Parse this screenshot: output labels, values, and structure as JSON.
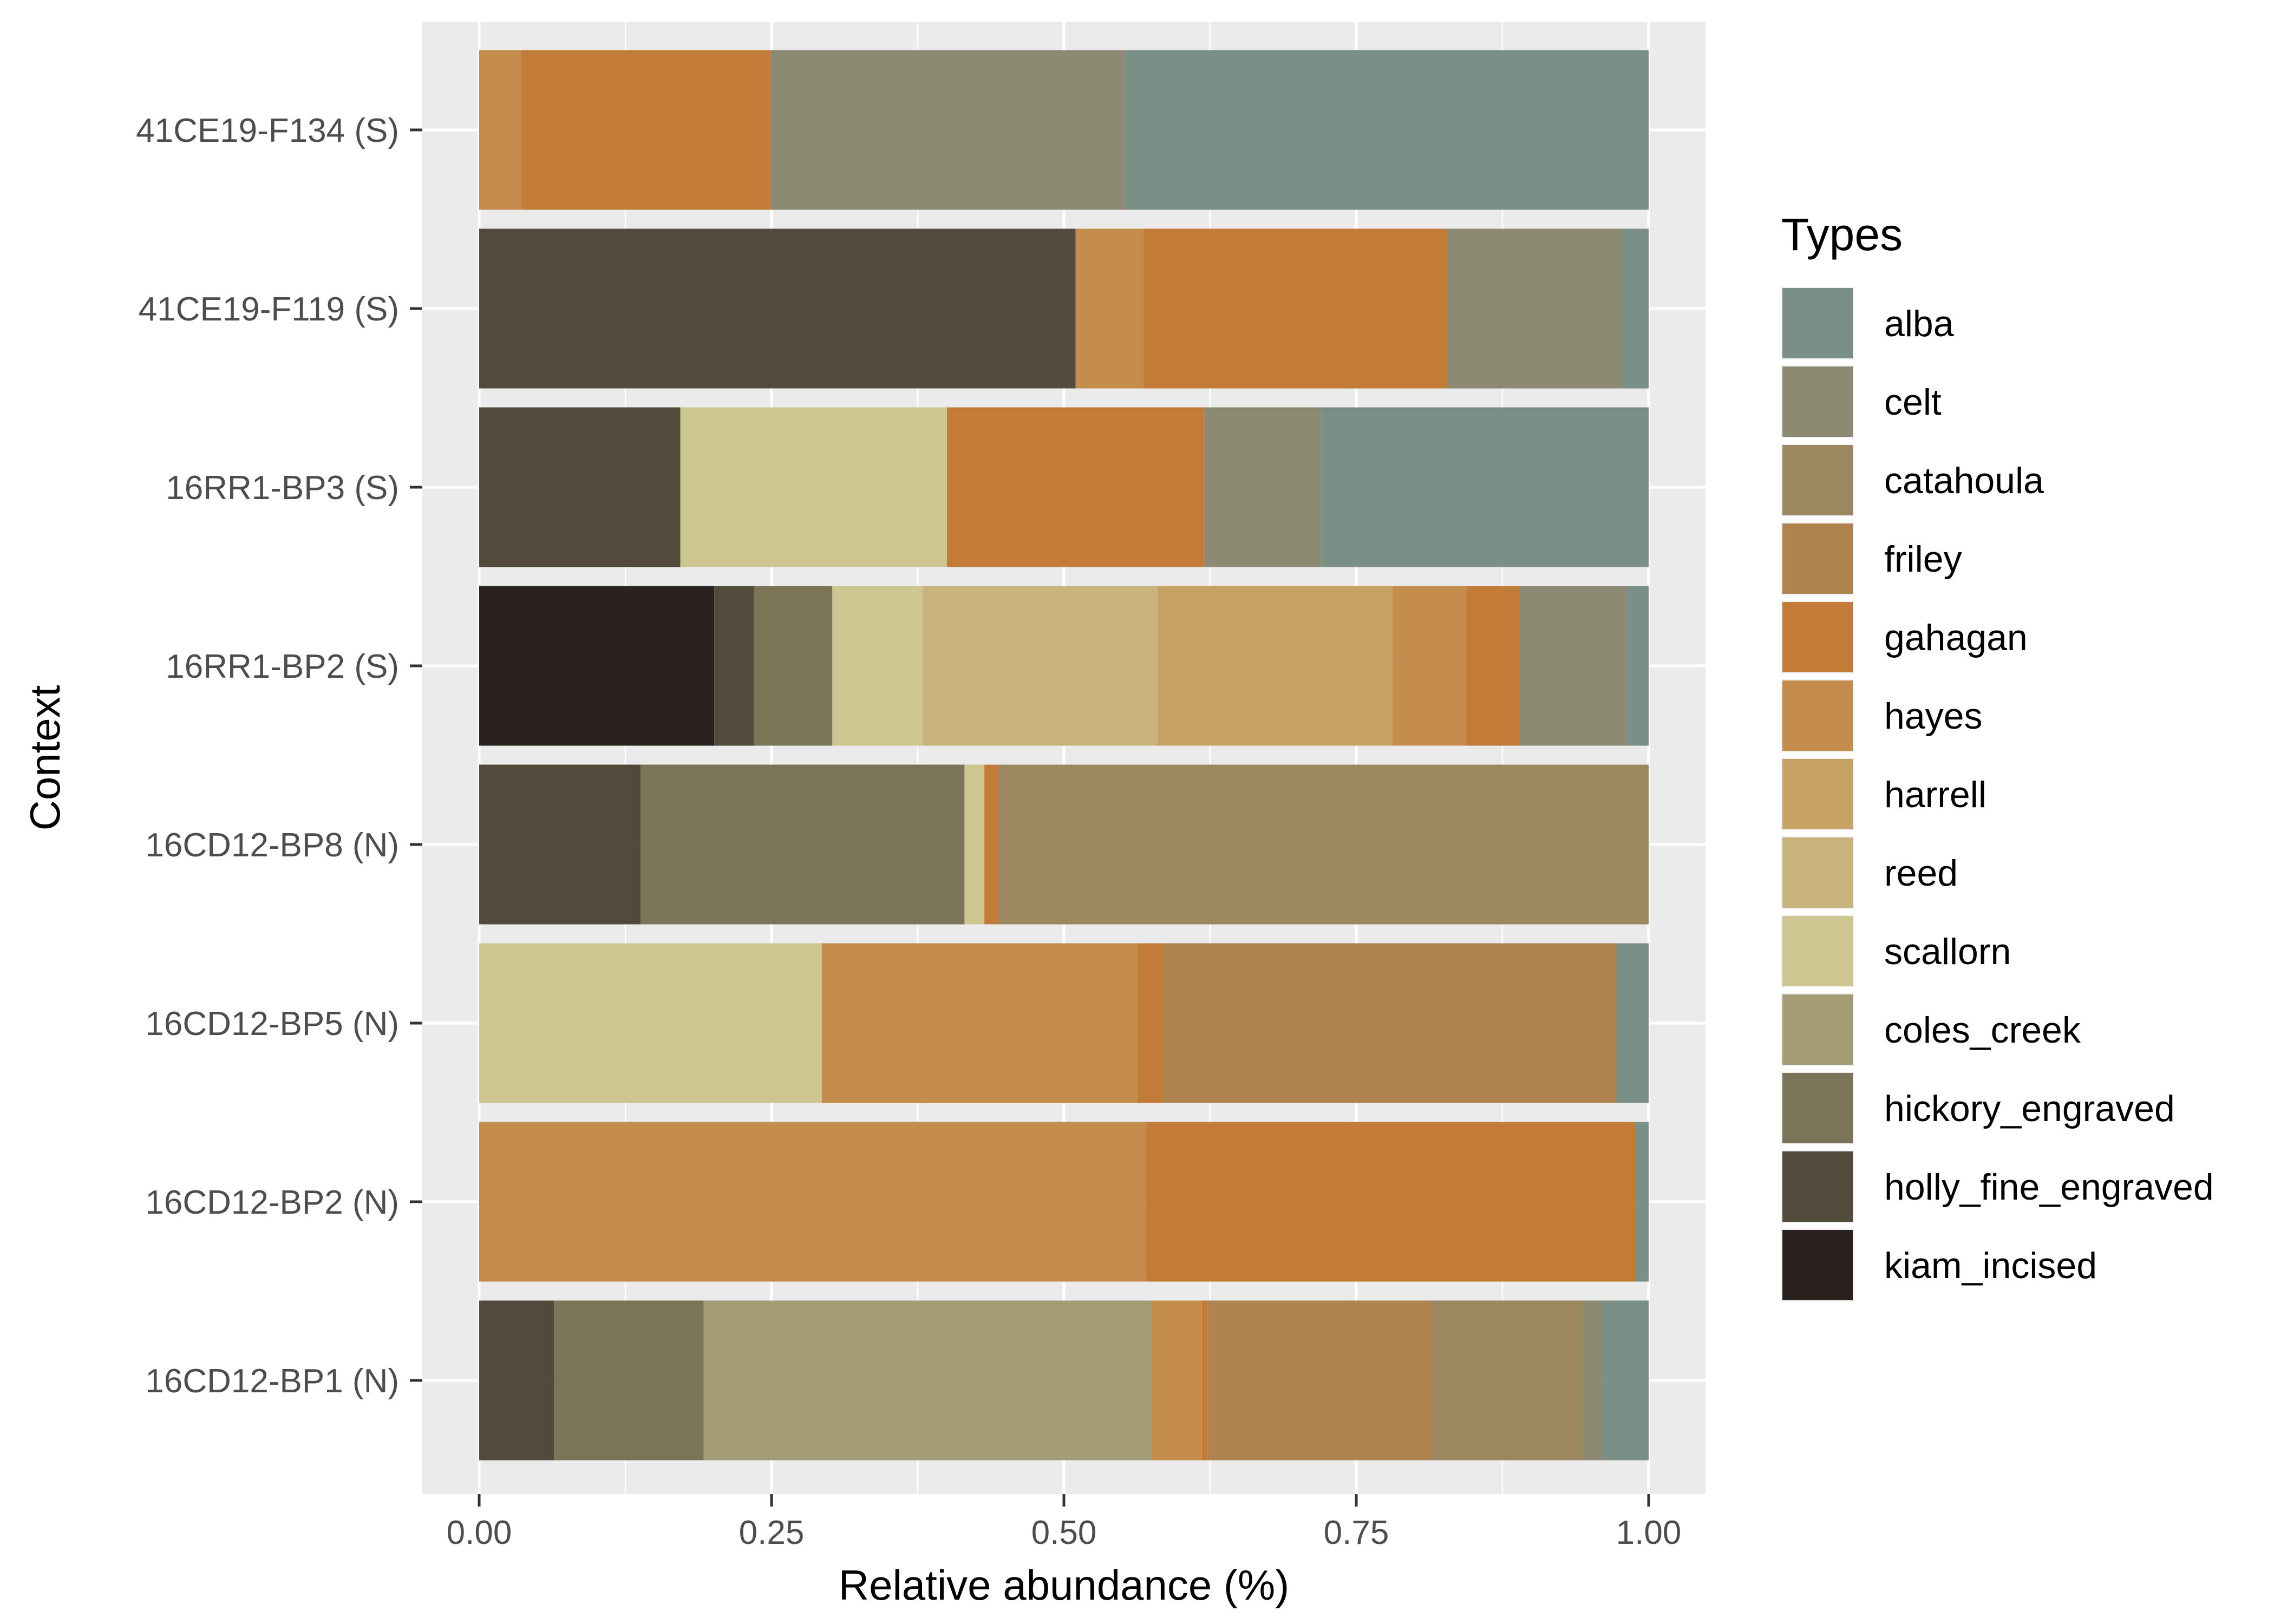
{
  "chart_data": {
    "type": "bar",
    "orientation": "horizontal",
    "stacked": true,
    "xlabel": "Relative abundance (%)",
    "ylabel": "Context",
    "xlim": [
      0,
      1
    ],
    "xticks": [
      "0.00",
      "0.25",
      "0.50",
      "0.75",
      "1.00"
    ],
    "grid": true,
    "legend_position": "right",
    "legend_title": "Types",
    "categories": [
      "16CD12-BP1 (N)",
      "16CD12-BP2 (N)",
      "16CD12-BP5 (N)",
      "16CD12-BP8 (N)",
      "16RR1-BP2 (S)",
      "16RR1-BP3 (S)",
      "41CE19-F119 (S)",
      "41CE19-F134 (S)"
    ],
    "series": [
      {
        "name": "kiam_incised",
        "color": "#2b2220",
        "values": [
          0,
          0,
          0,
          0,
          0.201,
          0,
          0,
          0
        ]
      },
      {
        "name": "holly_fine_engraved",
        "color": "#524b3b",
        "values": [
          0.064,
          0,
          0,
          0.138,
          0.034,
          0.172,
          0.51,
          0
        ]
      },
      {
        "name": "hickory_engraved",
        "color": "#7b7457",
        "values": [
          0.128,
          0,
          0,
          0.277,
          0.067,
          0,
          0,
          0
        ]
      },
      {
        "name": "coles_creek",
        "color": "#a49c75",
        "values": [
          0.383,
          0,
          0,
          0,
          0,
          0,
          0,
          0
        ]
      },
      {
        "name": "scallorn",
        "color": "#cdc690",
        "values": [
          0,
          0,
          0.293,
          0.017,
          0.077,
          0.228,
          0,
          0
        ]
      },
      {
        "name": "reed",
        "color": "#c9b37c",
        "values": [
          0,
          0,
          0,
          0,
          0.201,
          0,
          0,
          0
        ]
      },
      {
        "name": "harrell",
        "color": "#c7a265",
        "values": [
          0,
          0,
          0,
          0,
          0.201,
          0,
          0,
          0
        ]
      },
      {
        "name": "hayes",
        "color": "#c48d4d",
        "values": [
          0.043,
          0.57,
          0.27,
          0,
          0.063,
          0,
          0.058,
          0.036
        ]
      },
      {
        "name": "gahagan",
        "color": "#c27c38",
        "values": [
          0.005,
          0.418,
          0.022,
          0.012,
          0.045,
          0.22,
          0.26,
          0.213
        ]
      },
      {
        "name": "friley",
        "color": "#ae834d",
        "values": [
          0.19,
          0,
          0.387,
          0,
          0,
          0,
          0,
          0
        ]
      },
      {
        "name": "catahoula",
        "color": "#9d8761",
        "values": [
          0.13,
          0,
          0,
          0.556,
          0,
          0,
          0,
          0
        ]
      },
      {
        "name": "celt",
        "color": "#8c8a72",
        "values": [
          0.017,
          0,
          0,
          0,
          0.092,
          0.1,
          0.15,
          0.303
        ]
      },
      {
        "name": "alba",
        "color": "#7a8f86",
        "values": [
          0.04,
          0.012,
          0.028,
          0,
          0.019,
          0.28,
          0.022,
          0.448
        ]
      }
    ],
    "legend_order": [
      "alba",
      "celt",
      "catahoula",
      "friley",
      "gahagan",
      "hayes",
      "harrell",
      "reed",
      "scallorn",
      "coles_creek",
      "hickory_engraved",
      "holly_fine_engraved",
      "kiam_incised"
    ]
  }
}
